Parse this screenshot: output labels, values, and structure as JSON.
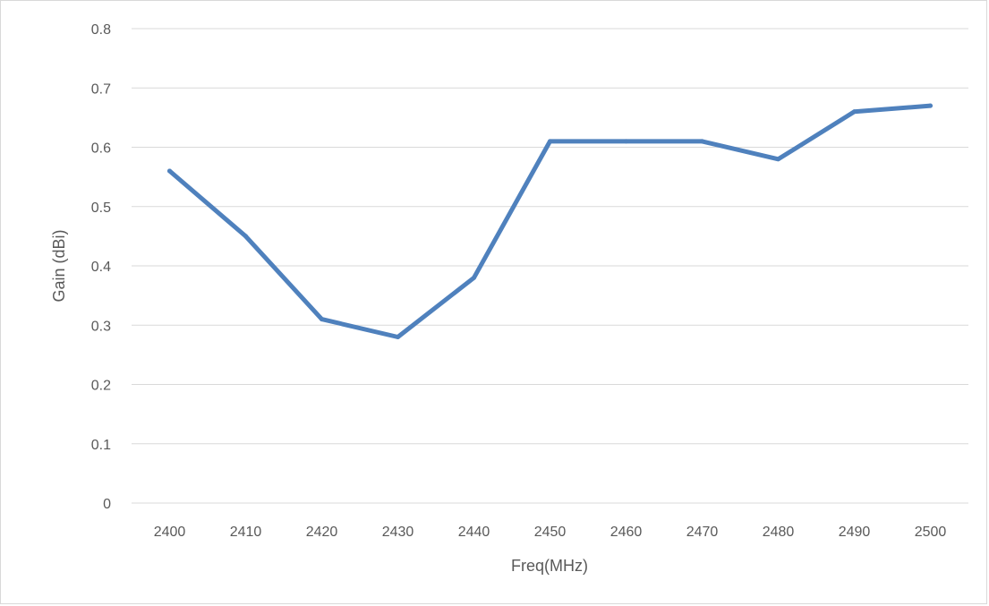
{
  "chart_data": {
    "type": "line",
    "title": "",
    "xlabel": "Freq(MHz)",
    "ylabel": "Gain  (dBi)",
    "categories": [
      "2400",
      "2410",
      "2420",
      "2430",
      "2440",
      "2450",
      "2460",
      "2470",
      "2480",
      "2490",
      "2500"
    ],
    "series": [
      {
        "values": [
          0.56,
          0.45,
          0.31,
          0.28,
          0.38,
          0.61,
          0.61,
          0.61,
          0.58,
          0.66,
          0.67
        ],
        "color": "#4f81bd"
      }
    ],
    "ylim": [
      0,
      0.8
    ],
    "yticks": [
      "0",
      "0.1",
      "0.2",
      "0.3",
      "0.4",
      "0.5",
      "0.6",
      "0.7",
      "0.8"
    ],
    "grid": true,
    "legend": "none",
    "colors": {
      "gridline": "#d9d9d9",
      "axis_line": "#d9d9d9",
      "text": "#595959"
    }
  }
}
